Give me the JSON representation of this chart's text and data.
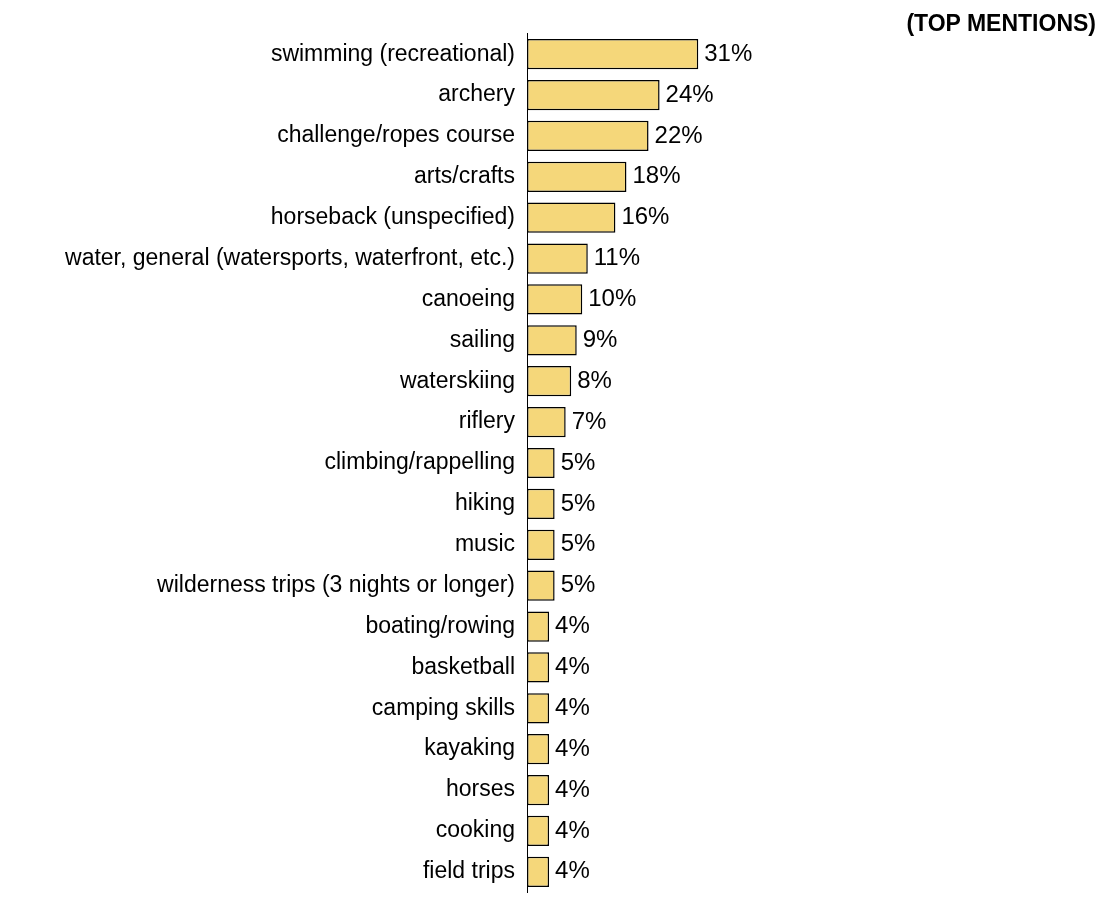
{
  "chart_data": {
    "type": "bar",
    "orientation": "horizontal",
    "title": "(TOP MENTIONS)",
    "categories": [
      "swimming (recreational)",
      "archery",
      "challenge/ropes course",
      "arts/crafts",
      "horseback (unspecified)",
      "water, general (watersports, waterfront, etc.)",
      "canoeing",
      "sailing",
      "waterskiing",
      "riflery",
      "climbing/rappelling",
      "hiking",
      "music",
      "wilderness trips (3 nights or longer)",
      "boating/rowing",
      "basketball",
      "camping skills",
      "kayaking",
      "horses",
      "cooking",
      "field trips"
    ],
    "values": [
      31,
      24,
      22,
      18,
      16,
      11,
      10,
      9,
      8,
      7,
      5,
      5,
      5,
      5,
      4,
      4,
      4,
      4,
      4,
      4,
      4
    ],
    "value_labels": [
      "31%",
      "24%",
      "22%",
      "18%",
      "16%",
      "11%",
      "10%",
      "9%",
      "8%",
      "7%",
      "5%",
      "5%",
      "5%",
      "5%",
      "4%",
      "4%",
      "4%",
      "4%",
      "4%",
      "4%",
      "4%"
    ],
    "color": "#f5d77a"
  }
}
